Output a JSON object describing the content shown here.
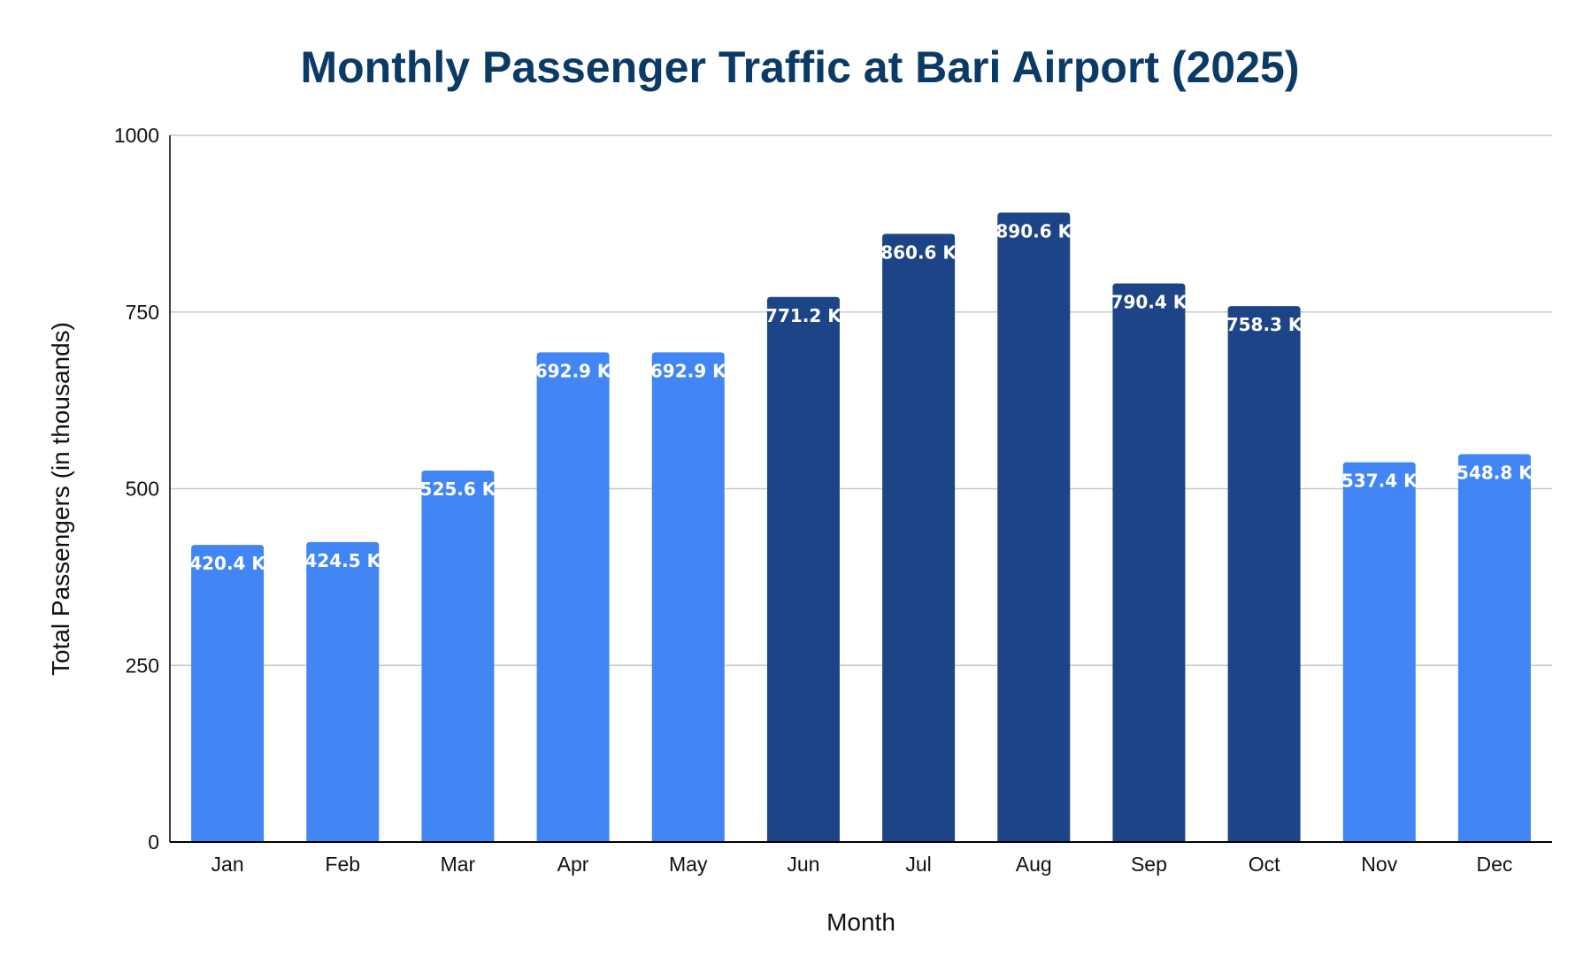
{
  "chart_data": {
    "type": "bar",
    "title": "Monthly Passenger Traffic at Bari Airport (2025)",
    "xlabel": "Month",
    "ylabel": "Total Passengers (in thousands)",
    "categories": [
      "Jan",
      "Feb",
      "Mar",
      "Apr",
      "May",
      "Jun",
      "Jul",
      "Aug",
      "Sep",
      "Oct",
      "Nov",
      "Dec"
    ],
    "values": [
      420.4,
      424.5,
      525.6,
      692.9,
      692.9,
      771.2,
      860.6,
      890.6,
      790.4,
      758.3,
      537.4,
      548.8
    ],
    "data_labels": [
      "420.4 K",
      "424.5 K",
      "525.6 K",
      "692.9 K",
      "692.9 K",
      "771.2 K",
      "860.6 K",
      "890.6 K",
      "790.4 K",
      "758.3 K",
      "537.4 K",
      "548.8 K"
    ],
    "bar_colors": [
      "#4285f4",
      "#4285f4",
      "#4285f4",
      "#4285f4",
      "#4285f4",
      "#1d4486",
      "#1d4486",
      "#1d4486",
      "#1d4486",
      "#1d4486",
      "#4285f4",
      "#4285f4"
    ],
    "ylim": [
      0,
      1000
    ],
    "yticks": [
      0,
      250,
      500,
      750,
      1000
    ],
    "grid": true,
    "legend": "none",
    "colors": {
      "title": "#0b3a66",
      "light_bar": "#4285f4",
      "dark_bar": "#1d4486",
      "gridline": "#c8c8c8",
      "axis_line": "#000000",
      "data_label": "#ffffff"
    }
  }
}
